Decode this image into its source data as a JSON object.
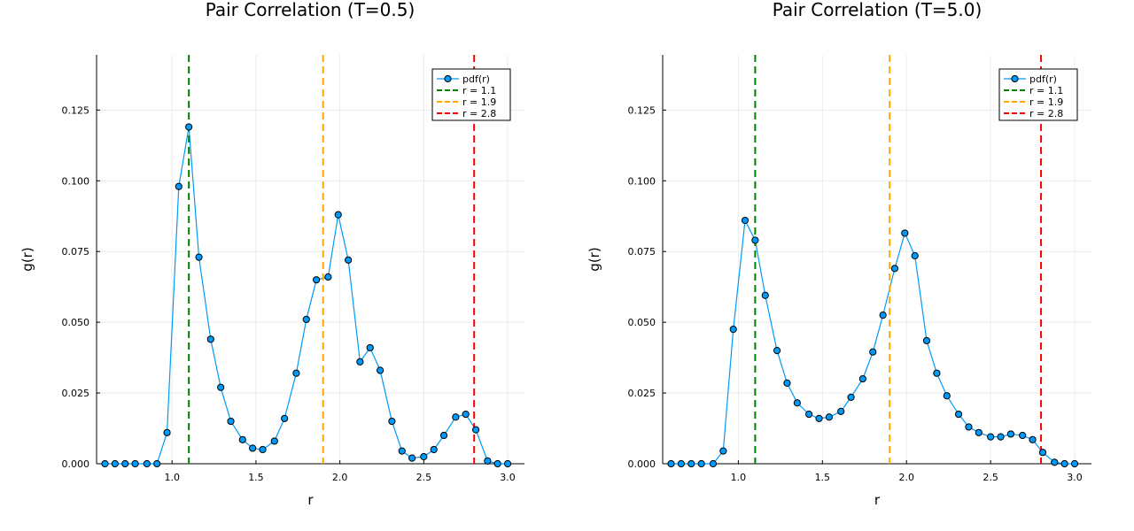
{
  "chart_data": [
    {
      "type": "line",
      "title": "Pair Correlation (T=0.5)",
      "xlabel": "r",
      "ylabel": "g(r)",
      "xlim": [
        0.55,
        3.1
      ],
      "ylim": [
        0.0,
        0.1445
      ],
      "xticks": [
        1.0,
        1.5,
        2.0,
        2.5,
        3.0
      ],
      "xtick_labels": [
        "1.0",
        "1.5",
        "2.0",
        "2.5",
        "3.0"
      ],
      "yticks": [
        0.0,
        0.025,
        0.05,
        0.075,
        0.1,
        0.125
      ],
      "ytick_labels": [
        "0.000",
        "0.025",
        "0.050",
        "0.075",
        "0.100",
        "0.125"
      ],
      "grid": true,
      "legend_position": "top-right",
      "series": [
        {
          "name": "pdf(r)",
          "color": "#009AFA",
          "marker": "circle",
          "x": [
            0.6,
            0.66,
            0.72,
            0.78,
            0.85,
            0.91,
            0.97,
            1.04,
            1.1,
            1.16,
            1.23,
            1.29,
            1.35,
            1.42,
            1.48,
            1.54,
            1.61,
            1.67,
            1.74,
            1.8,
            1.86,
            1.93,
            1.99,
            2.05,
            2.12,
            2.18,
            2.24,
            2.31,
            2.37,
            2.43,
            2.5,
            2.56,
            2.62,
            2.69,
            2.75,
            2.81,
            2.88,
            2.94,
            3.0
          ],
          "y": [
            0.0,
            0.0,
            0.0,
            0.0,
            0.0,
            0.0,
            0.011,
            0.098,
            0.119,
            0.073,
            0.044,
            0.027,
            0.015,
            0.0085,
            0.0055,
            0.005,
            0.008,
            0.016,
            0.032,
            0.051,
            0.065,
            0.066,
            0.088,
            0.072,
            0.036,
            0.041,
            0.033,
            0.015,
            0.0045,
            0.002,
            0.0025,
            0.005,
            0.01,
            0.0165,
            0.0175,
            0.012,
            0.001,
            0.0,
            0.0
          ]
        }
      ],
      "vlines": [
        {
          "name": "r = 1.1",
          "x": 1.1,
          "color": "#008000"
        },
        {
          "name": "r = 1.9",
          "x": 1.9,
          "color": "#FFA500"
        },
        {
          "name": "r = 2.8",
          "x": 2.8,
          "color": "#FF0000"
        }
      ]
    },
    {
      "type": "line",
      "title": "Pair Correlation (T=5.0)",
      "xlabel": "r",
      "ylabel": "g(r)",
      "xlim": [
        0.55,
        3.1
      ],
      "ylim": [
        0.0,
        0.1445
      ],
      "xticks": [
        1.0,
        1.5,
        2.0,
        2.5,
        3.0
      ],
      "xtick_labels": [
        "1.0",
        "1.5",
        "2.0",
        "2.5",
        "3.0"
      ],
      "yticks": [
        0.0,
        0.025,
        0.05,
        0.075,
        0.1,
        0.125
      ],
      "ytick_labels": [
        "0.000",
        "0.025",
        "0.050",
        "0.075",
        "0.100",
        "0.125"
      ],
      "grid": true,
      "legend_position": "top-right",
      "series": [
        {
          "name": "pdf(r)",
          "color": "#009AFA",
          "marker": "circle",
          "x": [
            0.6,
            0.66,
            0.72,
            0.78,
            0.85,
            0.91,
            0.97,
            1.04,
            1.1,
            1.16,
            1.23,
            1.29,
            1.35,
            1.42,
            1.48,
            1.54,
            1.61,
            1.67,
            1.74,
            1.8,
            1.86,
            1.93,
            1.99,
            2.05,
            2.12,
            2.18,
            2.24,
            2.31,
            2.37,
            2.43,
            2.5,
            2.56,
            2.62,
            2.69,
            2.75,
            2.81,
            2.88,
            2.94,
            3.0
          ],
          "y": [
            0.0,
            0.0,
            0.0,
            0.0,
            0.0,
            0.0045,
            0.0475,
            0.086,
            0.079,
            0.0595,
            0.04,
            0.0285,
            0.0215,
            0.0175,
            0.016,
            0.0165,
            0.0185,
            0.0235,
            0.03,
            0.0395,
            0.0525,
            0.069,
            0.0815,
            0.0735,
            0.0435,
            0.032,
            0.024,
            0.0175,
            0.013,
            0.011,
            0.0095,
            0.0095,
            0.0105,
            0.01,
            0.0085,
            0.004,
            0.0005,
            0.0,
            0.0
          ]
        }
      ],
      "vlines": [
        {
          "name": "r = 1.1",
          "x": 1.1,
          "color": "#008000"
        },
        {
          "name": "r = 1.9",
          "x": 1.9,
          "color": "#FFA500"
        },
        {
          "name": "r = 2.8",
          "x": 2.8,
          "color": "#FF0000"
        }
      ]
    }
  ]
}
